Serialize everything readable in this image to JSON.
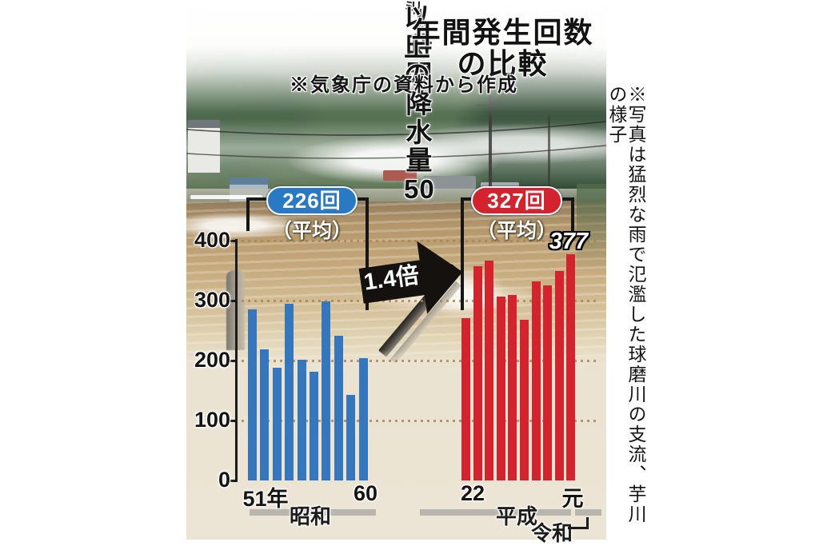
{
  "title": {
    "line1_prefix": "1時間降水量50",
    "line1_small_top": "ミ",
    "line1_small_bottom": "リ",
    "line1_suffix": "以上の",
    "line2": "年間発生回数の比較"
  },
  "source_note": "※気象庁の資料から作成",
  "photo_caption": "※写真は猛烈な雨で氾濫した球磨川の支流、芋川の様子",
  "averages": {
    "showa": {
      "label": "226回",
      "sub": "（平均）"
    },
    "heisei": {
      "label": "327回",
      "sub": "（平均）"
    }
  },
  "multiplier": "1.4倍",
  "peak_label": "377",
  "axis": {
    "y_ticks": [
      400,
      300,
      200,
      100,
      0
    ],
    "x_labels": {
      "showa_first": "51年",
      "showa_last": "60",
      "heisei_first": "22",
      "heisei_last": "元"
    }
  },
  "era": {
    "showa": "昭和",
    "heisei": "平成",
    "reiwa": "令和"
  },
  "chart_data": {
    "type": "bar",
    "title": "1時間降水量50ミリ以上の年間発生回数の比較",
    "source": "※気象庁の資料から作成",
    "ylim": [
      0,
      400
    ],
    "yticks": [
      0,
      100,
      200,
      300,
      400
    ],
    "grid": "horizontal dotted lines at 100/200/300/400",
    "legend_position": "none",
    "series": [
      {
        "name": "昭和51年〜60年",
        "color": "#3576bd",
        "x_first_label": "51年",
        "x_last_label": "60",
        "average": 226,
        "average_label": "226回（平均）",
        "values": [
          285,
          219,
          188,
          295,
          201,
          181,
          299,
          241,
          143,
          204
        ]
      },
      {
        "name": "平成22年〜令和元年",
        "color": "#d2232e",
        "x_first_label": "22",
        "x_last_label": "元",
        "average": 327,
        "average_label": "327回（平均）",
        "values": [
          271,
          358,
          367,
          307,
          309,
          268,
          332,
          326,
          350,
          377
        ]
      }
    ],
    "annotations": [
      {
        "type": "arrow",
        "text": "1.4倍"
      },
      {
        "type": "value-label",
        "text": "377",
        "target": "last bar of second series"
      }
    ]
  }
}
